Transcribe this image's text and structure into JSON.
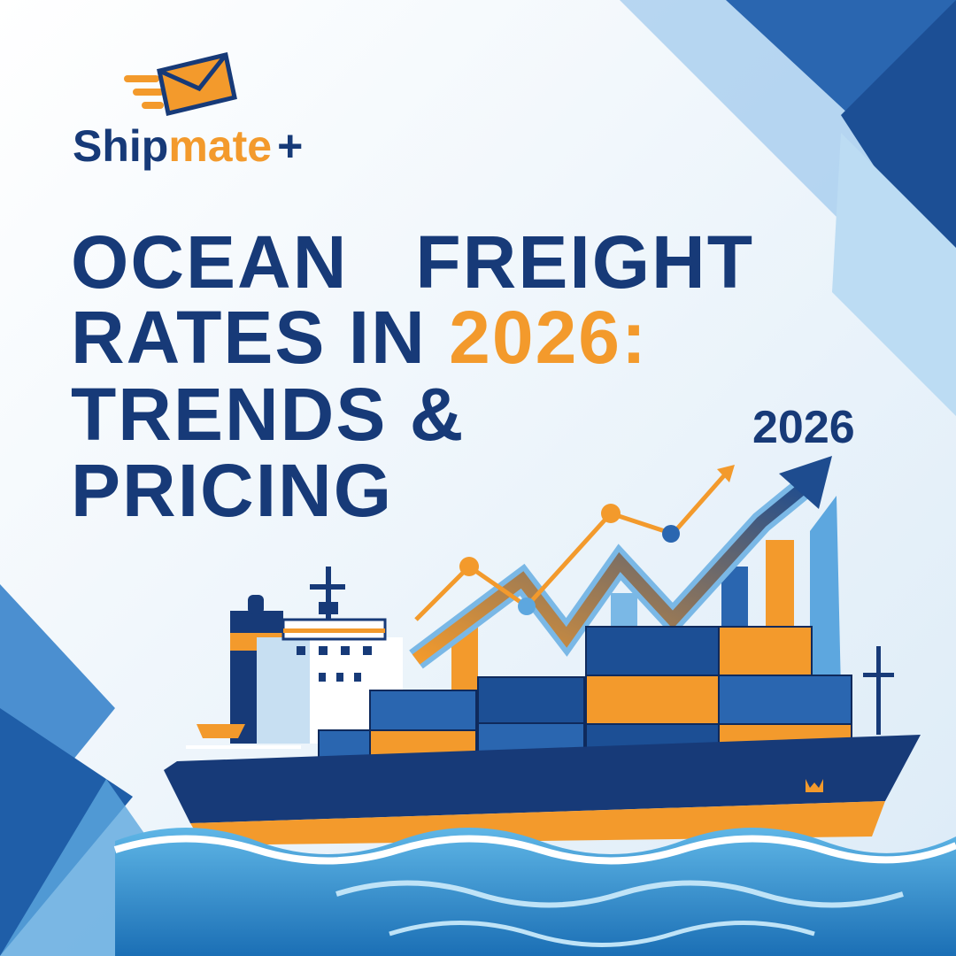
{
  "logo": {
    "parts": [
      "Ship",
      "mate",
      "+"
    ]
  },
  "headline": {
    "line1": "OCEAN   FREIGHT",
    "line2": "RATES IN",
    "line2_highlight": "2026:",
    "line3": "TRENDS &",
    "line4": "PRICING"
  },
  "badge": "2026"
}
